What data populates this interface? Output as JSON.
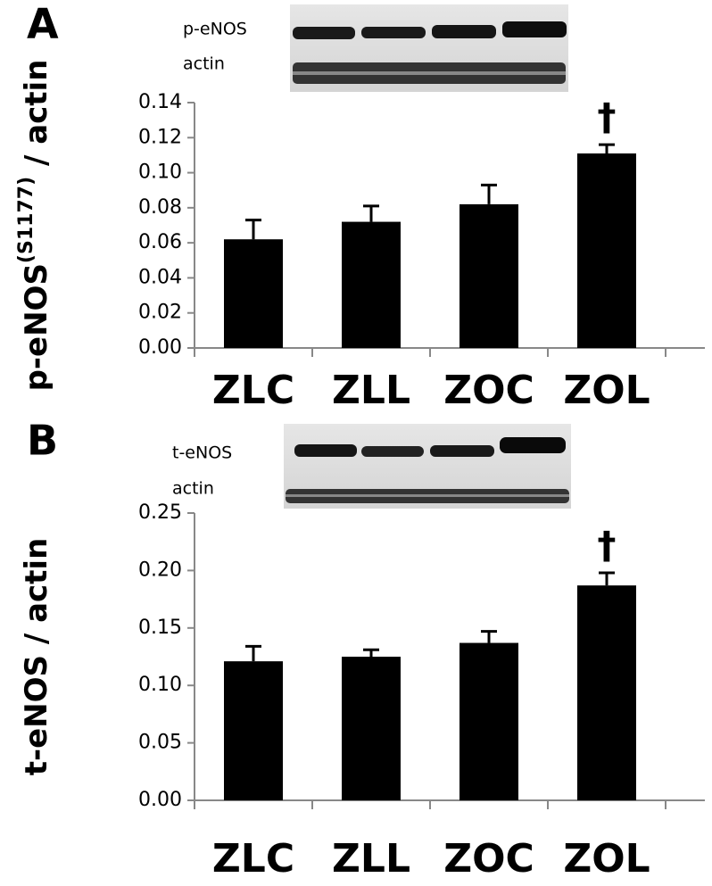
{
  "chart_data": [
    {
      "type": "bar",
      "panel": "A",
      "blot_labels": [
        "p-eNOS",
        "actin"
      ],
      "ylabel": [
        "p-eNOS",
        "(S1177)",
        " / actin"
      ],
      "categories": [
        "ZLC",
        "ZLL",
        "ZOC",
        "ZOL"
      ],
      "values": [
        0.062,
        0.072,
        0.082,
        0.111
      ],
      "errors": [
        0.011,
        0.009,
        0.011,
        0.005
      ],
      "value_annotations": [
        null,
        null,
        null,
        "†"
      ],
      "color": "#000000",
      "ylim": [
        0,
        0.14
      ],
      "yticks": [
        {
          "value": 0,
          "label": "0.00"
        },
        {
          "value": 0.02,
          "label": "0.02"
        },
        {
          "value": 0.04,
          "label": "0.04"
        },
        {
          "value": 0.06,
          "label": "0.06"
        },
        {
          "value": 0.08,
          "label": "0.08"
        },
        {
          "value": 0.1,
          "label": "0.10"
        },
        {
          "value": 0.12,
          "label": "0.12"
        },
        {
          "value": 0.14,
          "label": "0.14"
        }
      ]
    },
    {
      "type": "bar",
      "panel": "B",
      "blot_labels": [
        "t-eNOS",
        "actin"
      ],
      "ylabel": [
        "t-eNOS / actin"
      ],
      "categories": [
        "ZLC",
        "ZLL",
        "ZOC",
        "ZOL"
      ],
      "values": [
        0.121,
        0.125,
        0.137,
        0.187
      ],
      "errors": [
        0.013,
        0.006,
        0.01,
        0.011
      ],
      "value_annotations": [
        null,
        null,
        null,
        "†"
      ],
      "color": "#000000",
      "ylim": [
        0,
        0.25
      ],
      "yticks": [
        {
          "value": 0,
          "label": "0.00"
        },
        {
          "value": 0.05,
          "label": "0.05"
        },
        {
          "value": 0.1,
          "label": "0.10"
        },
        {
          "value": 0.15,
          "label": "0.15"
        },
        {
          "value": 0.2,
          "label": "0.20"
        },
        {
          "value": 0.25,
          "label": "0.25"
        }
      ]
    }
  ]
}
